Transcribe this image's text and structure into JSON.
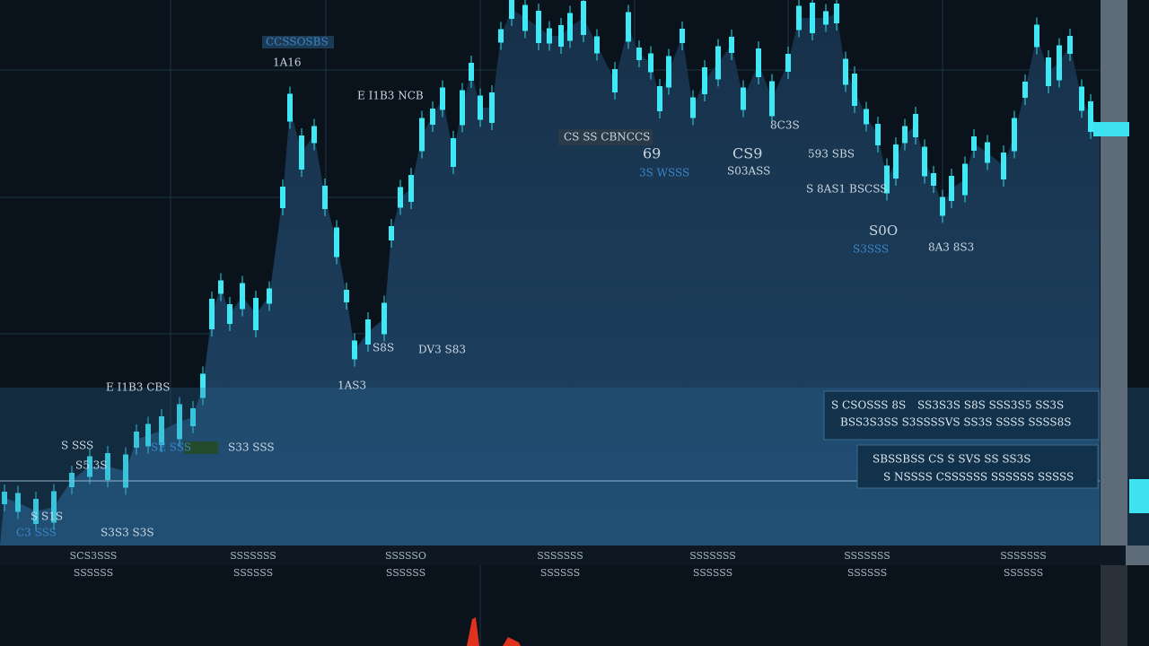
{
  "annotations": [
    "CCSSOSBS",
    "1A16",
    "E I1B3 NCB",
    "8C3S",
    "CS SS CBNCCS",
    "69",
    "CS9",
    "593 SBS",
    "3S WSSS",
    "S03ASS",
    "S 8AS1 BSCSS",
    "S0O",
    "S3SSS",
    "8A3 8S3",
    "S8S",
    "DV3 S83",
    "1AS3",
    "E I1B3 CBS",
    "S SSS",
    "SE SSS",
    "S33 SSS",
    "S5 3S",
    "S S1S",
    "C3 SSS",
    "S3S3 S3S"
  ],
  "info_panel": [
    "S CSOSSS 8S",
    "SS3S3S S8S SSS3S5 SS3S",
    "BSS3S3SS S3SSSSVS SS3S SSSS SSSS8S",
    "SBSSBSS CS S SVS SS SS3S",
    "S NSSSS CSSSSSS SSSSSS SSSSS"
  ],
  "axis_labels": [
    [
      "SCS3SSS",
      "SSSSSS"
    ],
    [
      "SSSSSSS",
      "SSSSSS"
    ],
    [
      "SSSSSO",
      "SSSSSS"
    ],
    [
      "SSSSSSS",
      "SSSSSS"
    ],
    [
      "SSSSSSS",
      "SSSSSS"
    ],
    [
      "SSSSSSS",
      "SSSSSS"
    ],
    [
      "SSSSSSS",
      "SSSSSS"
    ]
  ]
}
